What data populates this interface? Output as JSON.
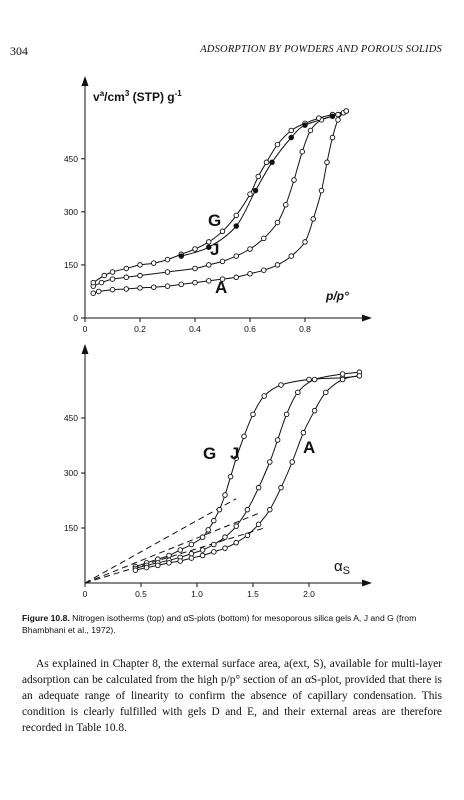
{
  "header": {
    "page_number": "304",
    "running_head": "ADSORPTION BY POWDERS AND POROUS SOLIDS"
  },
  "figure": {
    "caption_label": "Figure 10.8.",
    "caption_text": "Nitrogen isotherms (top) and αS-plots (bottom) for mesoporous silica gels A, J and G (from Bhambhani et al., 1972)."
  },
  "body": {
    "paragraph": "As explained in Chapter 8, the external surface area, a(ext, S), available for multi-layer adsorption can be calculated from the high p/p° section of an αS-plot, provided that there is an adequate range of linearity to confirm the absence of capillary condensation. This condition is clearly fulfilled with gels D and E, and their external areas are therefore recorded in Table 10.8."
  },
  "chart_data": [
    {
      "type": "line",
      "ylabel": "v^a/cm³ (STP) g⁻¹",
      "xlabel": "p/p°",
      "xlim": [
        0,
        1.0
      ],
      "ylim": [
        0,
        650
      ],
      "x_ticks": [
        "0",
        "0.2",
        "0.4",
        "0.6",
        "0.8"
      ],
      "y_ticks": [
        "0",
        "150",
        "300",
        "450"
      ],
      "series": [
        {
          "name": "A",
          "marker": "open",
          "points": [
            [
              0.03,
              70
            ],
            [
              0.05,
              75
            ],
            [
              0.1,
              80
            ],
            [
              0.15,
              82
            ],
            [
              0.2,
              85
            ],
            [
              0.25,
              87
            ],
            [
              0.3,
              90
            ],
            [
              0.35,
              95
            ],
            [
              0.4,
              100
            ],
            [
              0.45,
              105
            ],
            [
              0.5,
              110
            ],
            [
              0.55,
              115
            ],
            [
              0.6,
              125
            ],
            [
              0.65,
              135
            ],
            [
              0.7,
              150
            ],
            [
              0.75,
              175
            ],
            [
              0.8,
              215
            ],
            [
              0.83,
              280
            ],
            [
              0.86,
              360
            ],
            [
              0.88,
              440
            ],
            [
              0.9,
              510
            ],
            [
              0.92,
              560
            ],
            [
              0.94,
              580
            ]
          ]
        },
        {
          "name": "J",
          "marker": "open",
          "points": [
            [
              0.03,
              90
            ],
            [
              0.06,
              100
            ],
            [
              0.1,
              110
            ],
            [
              0.15,
              115
            ],
            [
              0.2,
              120
            ],
            [
              0.3,
              130
            ],
            [
              0.4,
              140
            ],
            [
              0.45,
              150
            ],
            [
              0.5,
              160
            ],
            [
              0.55,
              175
            ],
            [
              0.6,
              195
            ],
            [
              0.65,
              225
            ],
            [
              0.7,
              270
            ],
            [
              0.73,
              320
            ],
            [
              0.76,
              390
            ],
            [
              0.79,
              470
            ],
            [
              0.82,
              530
            ],
            [
              0.86,
              560
            ],
            [
              0.92,
              575
            ],
            [
              0.95,
              585
            ]
          ]
        },
        {
          "name": "G",
          "marker": "open",
          "points": [
            [
              0.03,
              100
            ],
            [
              0.07,
              120
            ],
            [
              0.1,
              130
            ],
            [
              0.15,
              140
            ],
            [
              0.2,
              150
            ],
            [
              0.25,
              155
            ],
            [
              0.3,
              165
            ],
            [
              0.35,
              180
            ],
            [
              0.4,
              195
            ],
            [
              0.45,
              215
            ],
            [
              0.5,
              245
            ],
            [
              0.55,
              290
            ],
            [
              0.6,
              350
            ],
            [
              0.63,
              400
            ],
            [
              0.66,
              440
            ],
            [
              0.7,
              490
            ],
            [
              0.75,
              530
            ],
            [
              0.8,
              550
            ],
            [
              0.85,
              565
            ],
            [
              0.9,
              575
            ],
            [
              0.95,
              585
            ]
          ]
        },
        {
          "name": "G (desorption)",
          "marker": "filled",
          "points": [
            [
              0.35,
              175
            ],
            [
              0.45,
              200
            ],
            [
              0.55,
              260
            ],
            [
              0.62,
              360
            ],
            [
              0.68,
              440
            ],
            [
              0.75,
              510
            ],
            [
              0.8,
              545
            ],
            [
              0.9,
              570
            ]
          ]
        }
      ]
    },
    {
      "type": "line",
      "xlabel": "αS",
      "xlim": [
        0,
        2.5
      ],
      "ylim": [
        0,
        600
      ],
      "x_ticks": [
        "0",
        "0.5",
        "1.0",
        "1.5",
        "2.0"
      ],
      "y_ticks": [
        "150",
        "300",
        "450"
      ],
      "series": [
        {
          "name": "G",
          "marker": "open",
          "points": [
            [
              0.45,
              45
            ],
            [
              0.55,
              55
            ],
            [
              0.65,
              65
            ],
            [
              0.75,
              75
            ],
            [
              0.85,
              90
            ],
            [
              0.95,
              105
            ],
            [
              1.05,
              125
            ],
            [
              1.1,
              145
            ],
            [
              1.15,
              170
            ],
            [
              1.2,
              200
            ],
            [
              1.25,
              240
            ],
            [
              1.3,
              290
            ],
            [
              1.35,
              340
            ],
            [
              1.42,
              400
            ],
            [
              1.5,
              460
            ],
            [
              1.6,
              510
            ],
            [
              1.75,
              540
            ],
            [
              2.0,
              555
            ],
            [
              2.3,
              560
            ],
            [
              2.45,
              565
            ]
          ]
        },
        {
          "name": "J",
          "marker": "open",
          "points": [
            [
              0.45,
              40
            ],
            [
              0.55,
              48
            ],
            [
              0.65,
              55
            ],
            [
              0.75,
              62
            ],
            [
              0.85,
              70
            ],
            [
              0.95,
              80
            ],
            [
              1.05,
              90
            ],
            [
              1.15,
              105
            ],
            [
              1.25,
              125
            ],
            [
              1.35,
              155
            ],
            [
              1.45,
              200
            ],
            [
              1.55,
              260
            ],
            [
              1.65,
              330
            ],
            [
              1.72,
              390
            ],
            [
              1.8,
              460
            ],
            [
              1.9,
              520
            ],
            [
              2.05,
              555
            ],
            [
              2.3,
              570
            ],
            [
              2.45,
              575
            ]
          ]
        },
        {
          "name": "A",
          "marker": "open",
          "points": [
            [
              0.45,
              35
            ],
            [
              0.55,
              42
            ],
            [
              0.65,
              48
            ],
            [
              0.75,
              55
            ],
            [
              0.85,
              60
            ],
            [
              0.95,
              68
            ],
            [
              1.05,
              75
            ],
            [
              1.15,
              85
            ],
            [
              1.25,
              95
            ],
            [
              1.35,
              110
            ],
            [
              1.45,
              130
            ],
            [
              1.55,
              160
            ],
            [
              1.65,
              200
            ],
            [
              1.75,
              260
            ],
            [
              1.85,
              330
            ],
            [
              1.95,
              410
            ],
            [
              2.05,
              470
            ],
            [
              2.15,
              520
            ],
            [
              2.3,
              555
            ],
            [
              2.45,
              565
            ]
          ]
        }
      ],
      "linear_fits": [
        {
          "name": "G fit",
          "points": [
            [
              0,
              0
            ],
            [
              1.35,
              230
            ]
          ]
        },
        {
          "name": "J fit",
          "points": [
            [
              0,
              0
            ],
            [
              1.55,
              190
            ]
          ]
        },
        {
          "name": "A fit",
          "points": [
            [
              0,
              0
            ],
            [
              1.6,
              150
            ]
          ]
        }
      ]
    }
  ]
}
